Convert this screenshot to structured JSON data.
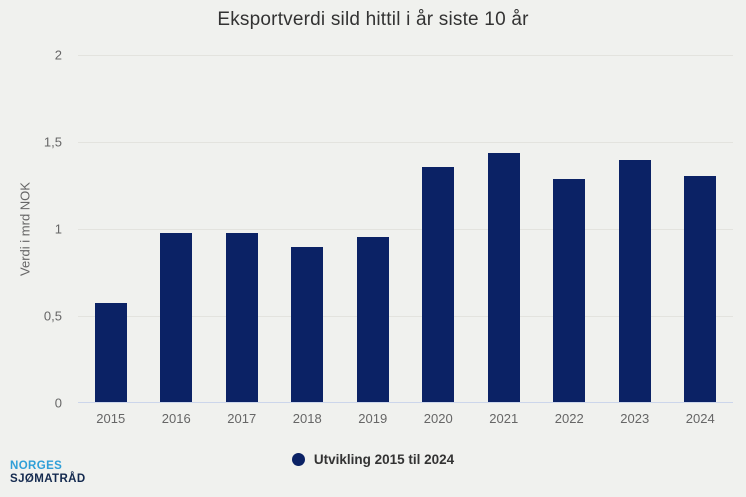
{
  "chart_data": {
    "type": "bar",
    "title": "Eksportverdi sild hittil i år siste 10 år",
    "ylabel": "Verdi i mrd NOK",
    "xlabel": "",
    "categories": [
      "2015",
      "2016",
      "2017",
      "2018",
      "2019",
      "2020",
      "2021",
      "2022",
      "2023",
      "2024"
    ],
    "values": [
      0.57,
      0.97,
      0.97,
      0.89,
      0.95,
      1.35,
      1.43,
      1.28,
      1.39,
      1.3
    ],
    "ylim": [
      0,
      2
    ],
    "yticks": [
      {
        "value": 0,
        "label": "0"
      },
      {
        "value": 0.5,
        "label": "0,5"
      },
      {
        "value": 1,
        "label": "1"
      },
      {
        "value": 1.5,
        "label": "1,5"
      },
      {
        "value": 2,
        "label": "2"
      }
    ],
    "grid": true,
    "bar_color": "#0b2265",
    "legend": {
      "position": "bottom",
      "label": "Utvikling 2015 til 2024"
    }
  },
  "colors": {
    "background": "#f0f1ee",
    "gridline": "#e3e3de",
    "axis_line": "#ccd6eb",
    "bar": "#0b2265",
    "logo_light_blue": "#2f9fd8",
    "logo_navy": "#13294e"
  },
  "logo": {
    "line1": "NORGES",
    "line2": "SJØMATRÅD"
  }
}
